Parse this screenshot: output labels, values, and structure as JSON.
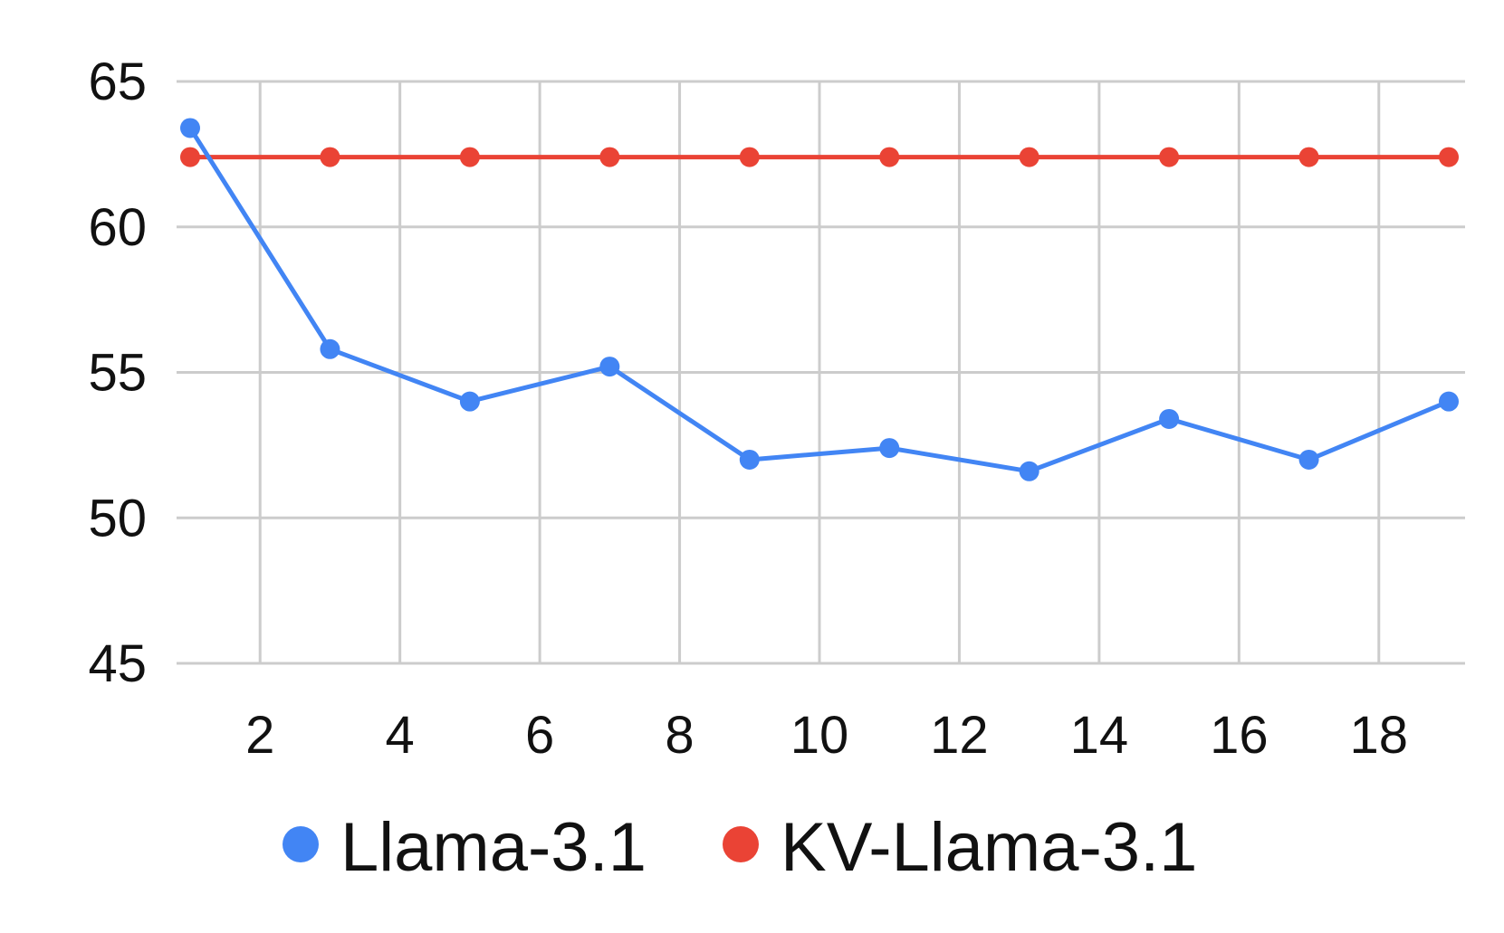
{
  "chart_data": {
    "type": "line",
    "title": "",
    "xlabel": "",
    "ylabel": "",
    "x": [
      1,
      3,
      5,
      7,
      9,
      11,
      13,
      15,
      17,
      19
    ],
    "xlim": [
      1,
      19
    ],
    "ylim": [
      45,
      65
    ],
    "xticks": [
      2,
      4,
      6,
      8,
      10,
      12,
      14,
      16,
      18
    ],
    "yticks": [
      45,
      50,
      55,
      60,
      65
    ],
    "grid": true,
    "legend_position": "bottom",
    "series": [
      {
        "name": "Llama-3.1",
        "color": "#4285F4",
        "values": [
          63.4,
          55.8,
          54.0,
          55.2,
          52.0,
          52.4,
          51.6,
          53.4,
          52.0,
          54.0
        ]
      },
      {
        "name": "KV-Llama-3.1",
        "color": "#EA4335",
        "values": [
          62.4,
          62.4,
          62.4,
          62.4,
          62.4,
          62.4,
          62.4,
          62.4,
          62.4,
          62.4
        ]
      }
    ]
  }
}
